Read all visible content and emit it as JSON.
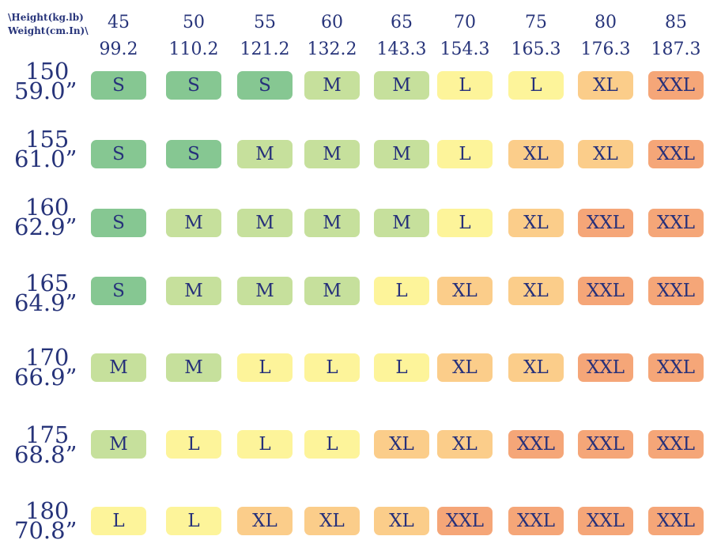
{
  "corner": {
    "line1": "\\Height(kg.lb)",
    "line2": "Weight(cm.In)\\"
  },
  "columns": [
    {
      "kg": "45",
      "lb": "99.2"
    },
    {
      "kg": "50",
      "lb": "110.2"
    },
    {
      "kg": "55",
      "lb": "121.2"
    },
    {
      "kg": "60",
      "lb": "132.2"
    },
    {
      "kg": "65",
      "lb": "143.3"
    },
    {
      "kg": "70",
      "lb": "154.3"
    },
    {
      "kg": "75",
      "lb": "165.3"
    },
    {
      "kg": "80",
      "lb": "176.3"
    },
    {
      "kg": "85",
      "lb": "187.3"
    }
  ],
  "rows": [
    {
      "cm": "150",
      "in": "59.0”",
      "sizes": [
        "S",
        "S",
        "S",
        "M",
        "M",
        "L",
        "L",
        "XL",
        "XXL"
      ]
    },
    {
      "cm": "155",
      "in": "61.0”",
      "sizes": [
        "S",
        "S",
        "M",
        "M",
        "M",
        "L",
        "XL",
        "XL",
        "XXL"
      ]
    },
    {
      "cm": "160",
      "in": "62.9”",
      "sizes": [
        "S",
        "M",
        "M",
        "M",
        "M",
        "L",
        "XL",
        "XXL",
        "XXL"
      ]
    },
    {
      "cm": "165",
      "in": "64.9”",
      "sizes": [
        "S",
        "M",
        "M",
        "M",
        "L",
        "XL",
        "XL",
        "XXL",
        "XXL"
      ]
    },
    {
      "cm": "170",
      "in": "66.9”",
      "sizes": [
        "M",
        "M",
        "L",
        "L",
        "L",
        "XL",
        "XL",
        "XXL",
        "XXL"
      ]
    },
    {
      "cm": "175",
      "in": "68.8”",
      "sizes": [
        "M",
        "L",
        "L",
        "L",
        "XL",
        "XL",
        "XXL",
        "XXL",
        "XXL"
      ]
    },
    {
      "cm": "180",
      "in": "70.8”",
      "sizes": [
        "L",
        "L",
        "XL",
        "XL",
        "XL",
        "XXL",
        "XXL",
        "XXL",
        "XXL"
      ]
    }
  ],
  "colors": {
    "text": "#27347a",
    "S": "#86c792",
    "M": "#c6e09c",
    "L": "#fdf49a",
    "XL": "#fbcd8a",
    "XXL": "#f5a678"
  }
}
